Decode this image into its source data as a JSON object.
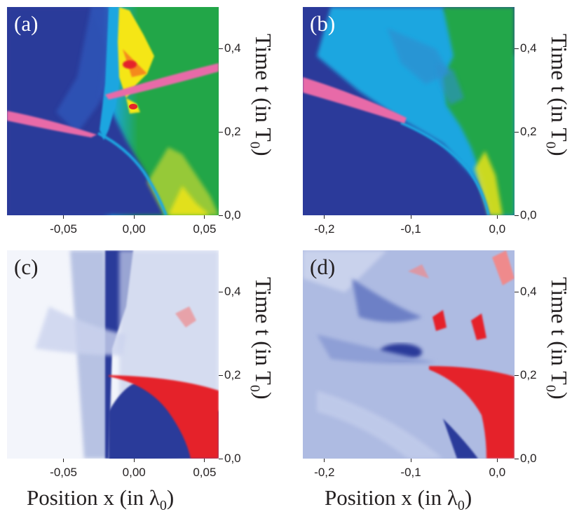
{
  "chart_data": [
    {
      "type": "heatmap",
      "panel_label": "(a)",
      "ylabel": "Time t (in T0)",
      "ylabel_main": "Time t (in T",
      "ylabel_sub": "0",
      "ylabel_close": ")",
      "yticks": [
        "0,0",
        "0,2",
        "0,4"
      ],
      "ytick_values": [
        0.0,
        0.2,
        0.4
      ],
      "ylim": [
        0.0,
        0.5
      ],
      "xticks": [
        "-0,05",
        "0,00",
        "0,05"
      ],
      "xtick_values": [
        -0.05,
        0.0,
        0.05
      ],
      "xlim": [
        -0.09,
        0.06
      ],
      "colormap": "jet",
      "colors": {
        "background": "#2b3a9a",
        "mid": "#1aa6e0",
        "high": "#22a648",
        "peak": "#f5e616",
        "max": "#e5242a",
        "beam": "#e86aa8"
      },
      "beam": {
        "x_start": -0.09,
        "t_start": 0.245,
        "x_end": -0.02,
        "t_end": 0.19
      },
      "beam2": {
        "x_start": -0.015,
        "t_start": 0.29,
        "x_end": 0.06,
        "t_end": 0.35
      },
      "boundary": [
        [
          0.045,
          0.0
        ],
        [
          0.02,
          0.08
        ],
        [
          0.0,
          0.15
        ],
        [
          -0.02,
          0.19
        ]
      ]
    },
    {
      "type": "heatmap",
      "panel_label": "(b)",
      "ylabel": "Time t (in T0)",
      "ylabel_main": "Time t (in T",
      "ylabel_sub": "0",
      "ylabel_close": ")",
      "yticks": [
        "0,0",
        "0,2",
        "0,4"
      ],
      "ytick_values": [
        0.0,
        0.2,
        0.4
      ],
      "ylim": [
        0.0,
        0.5
      ],
      "xticks": [
        "-0,2",
        "-0,1",
        "0,0"
      ],
      "xtick_values": [
        -0.2,
        -0.1,
        0.0
      ],
      "xlim": [
        -0.225,
        0.02
      ],
      "colormap": "jet",
      "colors": {
        "background": "#2b3a9a",
        "mid": "#1aa6e0",
        "high": "#22a648",
        "peak": "#f5e616",
        "beam": "#e86aa8"
      },
      "beam": {
        "x_start": -0.225,
        "t_start": 0.3,
        "x_end": -0.1,
        "t_end": 0.21
      },
      "boundary": [
        [
          -0.005,
          0.0
        ],
        [
          -0.04,
          0.1
        ],
        [
          -0.08,
          0.18
        ],
        [
          -0.1,
          0.21
        ]
      ]
    },
    {
      "type": "heatmap",
      "panel_label": "(c)",
      "ylabel": "Time t (in T0)",
      "ylabel_main": "Time t (in T",
      "ylabel_sub": "0",
      "ylabel_close": ")",
      "yticks": [
        "0,0",
        "0,2",
        "0,4"
      ],
      "ytick_values": [
        0.0,
        0.2,
        0.4
      ],
      "ylim": [
        0.0,
        0.5
      ],
      "xticks": [
        "-0,05",
        "0,00",
        "0,05"
      ],
      "xtick_values": [
        -0.05,
        0.0,
        0.05
      ],
      "xlim": [
        -0.09,
        0.06
      ],
      "xlabel": "Position x (in λ0)",
      "xlabel_main": "Position x (in λ",
      "xlabel_sub": "0",
      "xlabel_close": ")",
      "colormap": "blue-white-red",
      "colors": {
        "negative": "#2b3a9a",
        "zero": "#f3f5fb",
        "positive": "#e5242a"
      },
      "boundary": [
        [
          0.028,
          0.0
        ],
        [
          0.02,
          0.08
        ],
        [
          0.0,
          0.15
        ],
        [
          -0.02,
          0.19
        ]
      ]
    },
    {
      "type": "heatmap",
      "panel_label": "(d)",
      "ylabel": "Time t (in T0)",
      "ylabel_main": "Time t (in T",
      "ylabel_sub": "0",
      "ylabel_close": ")",
      "yticks": [
        "0,0",
        "0,2",
        "0,4"
      ],
      "ytick_values": [
        0.0,
        0.2,
        0.4
      ],
      "ylim": [
        0.0,
        0.5
      ],
      "xticks": [
        "-0,2",
        "-0,1",
        "0,0"
      ],
      "xtick_values": [
        -0.2,
        -0.1,
        0.0
      ],
      "xlim": [
        -0.225,
        0.02
      ],
      "xlabel": "Position x (in λ0)",
      "xlabel_main": "Position x (in λ",
      "xlabel_sub": "0",
      "xlabel_close": ")",
      "colormap": "blue-white-red",
      "colors": {
        "negative": "#2b3a9a",
        "zero": "#f3f5fb",
        "positive": "#e5242a"
      },
      "boundary": [
        [
          -0.01,
          0.0
        ],
        [
          -0.04,
          0.1
        ],
        [
          -0.08,
          0.18
        ],
        [
          -0.1,
          0.21
        ]
      ]
    }
  ]
}
